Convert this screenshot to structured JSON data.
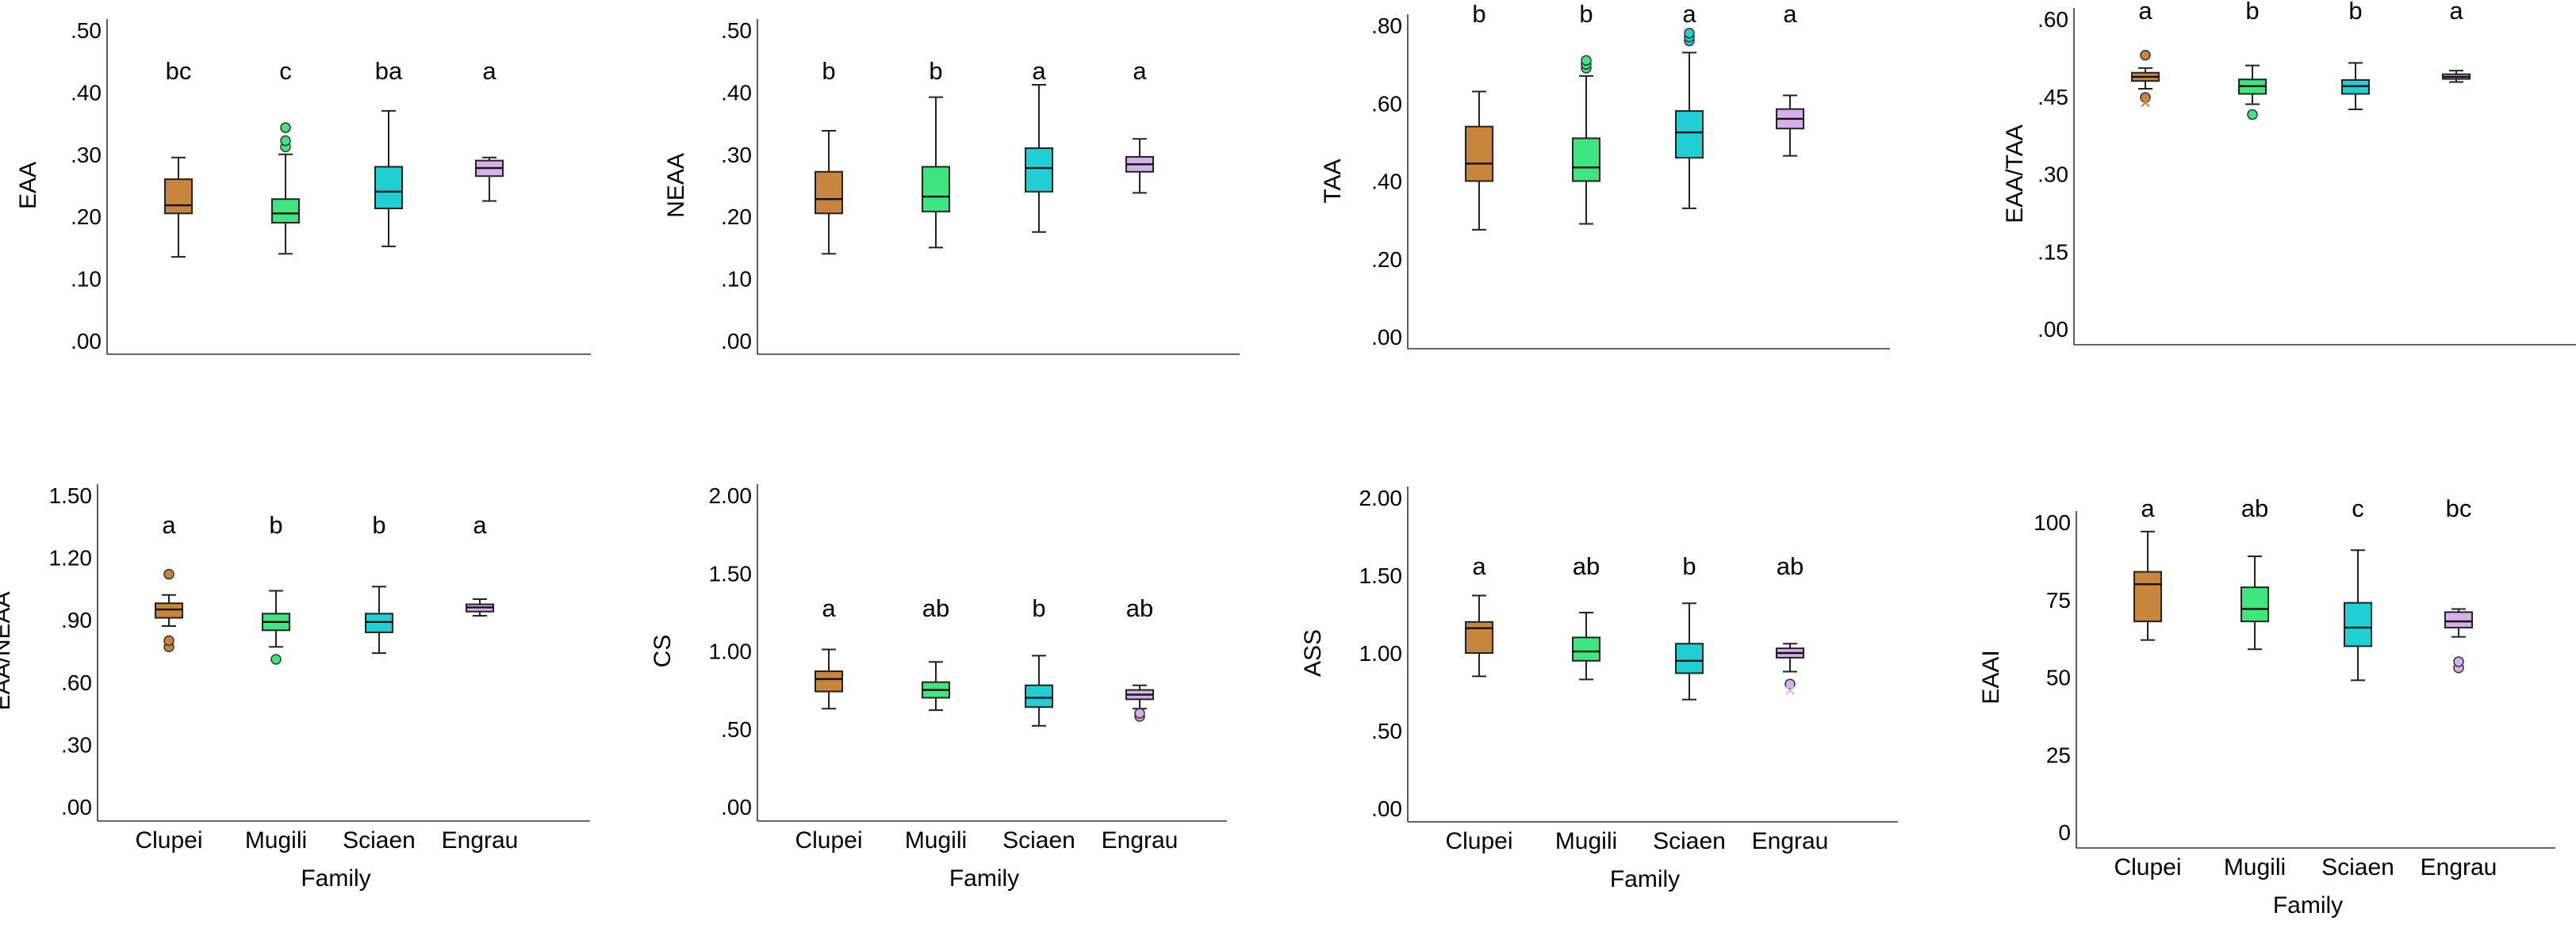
{
  "figure": {
    "categories": [
      "Clupei",
      "Mugili",
      "Sciaen",
      "Engrau"
    ],
    "xlabel": "Family",
    "colors": [
      "#c8853c",
      "#3fe67f",
      "#1fcfd3",
      "#d6b0ea"
    ]
  },
  "chart_data": [
    {
      "type": "boxplot",
      "ylabel": "EAA",
      "ylim": [
        0,
        0.5
      ],
      "ticks": [
        0,
        0.1,
        0.2,
        0.3,
        0.4,
        0.5
      ],
      "tick_labels": [
        ".00",
        ".10",
        ".20",
        ".30",
        ".40",
        ".50"
      ],
      "letters": [
        "bc",
        "c",
        "ba",
        "a"
      ],
      "boxes": [
        {
          "min": 0.135,
          "q1": 0.205,
          "median": 0.218,
          "q3": 0.26,
          "max": 0.295,
          "outliers": []
        },
        {
          "min": 0.14,
          "q1": 0.19,
          "median": 0.205,
          "q3": 0.228,
          "max": 0.3,
          "outliers": [
            0.312,
            0.322,
            0.343
          ]
        },
        {
          "min": 0.152,
          "q1": 0.213,
          "median": 0.24,
          "q3": 0.28,
          "max": 0.37,
          "outliers": []
        },
        {
          "min": 0.225,
          "q1": 0.265,
          "median": 0.278,
          "q3": 0.29,
          "max": 0.295,
          "outliers": []
        }
      ]
    },
    {
      "type": "boxplot",
      "ylabel": "NEAA",
      "ylim": [
        0,
        0.5
      ],
      "ticks": [
        0,
        0.1,
        0.2,
        0.3,
        0.4,
        0.5
      ],
      "tick_labels": [
        ".00",
        ".10",
        ".20",
        ".30",
        ".40",
        ".50"
      ],
      "letters": [
        "b",
        "b",
        "a",
        "a"
      ],
      "boxes": [
        {
          "min": 0.14,
          "q1": 0.205,
          "median": 0.228,
          "q3": 0.272,
          "max": 0.338,
          "outliers": []
        },
        {
          "min": 0.15,
          "q1": 0.208,
          "median": 0.232,
          "q3": 0.28,
          "max": 0.392,
          "outliers": []
        },
        {
          "min": 0.175,
          "q1": 0.24,
          "median": 0.278,
          "q3": 0.31,
          "max": 0.412,
          "outliers": []
        },
        {
          "min": 0.238,
          "q1": 0.272,
          "median": 0.284,
          "q3": 0.296,
          "max": 0.325,
          "outliers": []
        }
      ]
    },
    {
      "type": "boxplot",
      "ylabel": "TAA",
      "ylim": [
        0,
        0.8
      ],
      "ticks": [
        0,
        0.2,
        0.4,
        0.6,
        0.8
      ],
      "tick_labels": [
        ".00",
        ".20",
        ".40",
        ".60",
        ".80"
      ],
      "letters": [
        "b",
        "b",
        "a",
        "a"
      ],
      "boxes": [
        {
          "min": 0.275,
          "q1": 0.4,
          "median": 0.445,
          "q3": 0.54,
          "max": 0.63,
          "outliers": []
        },
        {
          "min": 0.29,
          "q1": 0.4,
          "median": 0.435,
          "q3": 0.51,
          "max": 0.67,
          "outliers": [
            0.69,
            0.7,
            0.71
          ]
        },
        {
          "min": 0.33,
          "q1": 0.46,
          "median": 0.525,
          "q3": 0.58,
          "max": 0.73,
          "outliers": [
            0.76,
            0.77,
            0.78
          ]
        },
        {
          "min": 0.465,
          "q1": 0.535,
          "median": 0.56,
          "q3": 0.585,
          "max": 0.62,
          "outliers": []
        }
      ]
    },
    {
      "type": "boxplot",
      "ylabel": "EAA/TAA",
      "ylim": [
        0,
        0.6
      ],
      "ticks": [
        0,
        0.15,
        0.3,
        0.45,
        0.6
      ],
      "tick_labels": [
        ".00",
        ".15",
        ".30",
        ".45",
        ".60"
      ],
      "letters": [
        "a",
        "b",
        "b",
        "a"
      ],
      "boxes": [
        {
          "min": 0.465,
          "q1": 0.48,
          "median": 0.488,
          "q3": 0.496,
          "max": 0.505,
          "outliers": [
            0.448,
            0.53
          ],
          "crosses": [
            0.438
          ]
        },
        {
          "min": 0.435,
          "q1": 0.455,
          "median": 0.47,
          "q3": 0.483,
          "max": 0.51,
          "outliers": [
            0.415
          ]
        },
        {
          "min": 0.425,
          "q1": 0.455,
          "median": 0.47,
          "q3": 0.482,
          "max": 0.515,
          "outliers": []
        },
        {
          "min": 0.478,
          "q1": 0.484,
          "median": 0.488,
          "q3": 0.493,
          "max": 0.5,
          "outliers": []
        }
      ]
    },
    {
      "type": "boxplot",
      "ylabel": "EAA/NEAA",
      "ylim": [
        0,
        1.5
      ],
      "ticks": [
        0,
        0.3,
        0.6,
        0.9,
        1.2,
        1.5
      ],
      "tick_labels": [
        ".00",
        ".30",
        ".60",
        ".90",
        "1.20",
        "1.50"
      ],
      "letters": [
        "a",
        "b",
        "b",
        "a"
      ],
      "boxes": [
        {
          "min": 0.87,
          "q1": 0.91,
          "median": 0.95,
          "q3": 0.98,
          "max": 1.02,
          "outliers": [
            0.77,
            0.8,
            1.12
          ]
        },
        {
          "min": 0.77,
          "q1": 0.85,
          "median": 0.89,
          "q3": 0.93,
          "max": 1.04,
          "outliers": [
            0.71
          ]
        },
        {
          "min": 0.74,
          "q1": 0.84,
          "median": 0.89,
          "q3": 0.93,
          "max": 1.06,
          "outliers": []
        },
        {
          "min": 0.92,
          "q1": 0.94,
          "median": 0.96,
          "q3": 0.975,
          "max": 1.0,
          "outliers": []
        }
      ]
    },
    {
      "type": "boxplot",
      "ylabel": "CS",
      "ylim": [
        0,
        2.0
      ],
      "ticks": [
        0,
        0.5,
        1.0,
        1.5,
        2.0
      ],
      "tick_labels": [
        ".00",
        ".50",
        "1.00",
        "1.50",
        "2.00"
      ],
      "letters": [
        "a",
        "ab",
        "b",
        "ab"
      ],
      "boxes": [
        {
          "min": 0.63,
          "q1": 0.74,
          "median": 0.82,
          "q3": 0.87,
          "max": 1.01,
          "outliers": []
        },
        {
          "min": 0.62,
          "q1": 0.7,
          "median": 0.75,
          "q3": 0.8,
          "max": 0.93,
          "outliers": []
        },
        {
          "min": 0.52,
          "q1": 0.64,
          "median": 0.7,
          "q3": 0.78,
          "max": 0.97,
          "outliers": []
        },
        {
          "min": 0.63,
          "q1": 0.69,
          "median": 0.72,
          "q3": 0.75,
          "max": 0.78,
          "outliers": [
            0.58,
            0.6
          ]
        }
      ]
    },
    {
      "type": "boxplot",
      "ylabel": "ASS",
      "ylim": [
        0,
        2.0
      ],
      "ticks": [
        0,
        0.5,
        1.0,
        1.5,
        2.0
      ],
      "tick_labels": [
        ".00",
        ".50",
        "1.00",
        "1.50",
        "2.00"
      ],
      "letters": [
        "a",
        "ab",
        "b",
        "ab"
      ],
      "boxes": [
        {
          "min": 0.85,
          "q1": 1.0,
          "median": 1.16,
          "q3": 1.2,
          "max": 1.37,
          "outliers": []
        },
        {
          "min": 0.83,
          "q1": 0.95,
          "median": 1.01,
          "q3": 1.1,
          "max": 1.26,
          "outliers": []
        },
        {
          "min": 0.7,
          "q1": 0.87,
          "median": 0.95,
          "q3": 1.06,
          "max": 1.32,
          "outliers": []
        },
        {
          "min": 0.88,
          "q1": 0.97,
          "median": 1.0,
          "q3": 1.03,
          "max": 1.06,
          "outliers": [
            0.8
          ],
          "crosses": [
            0.76
          ]
        }
      ]
    },
    {
      "type": "boxplot",
      "ylabel": "EAAI",
      "ylim": [
        0,
        100
      ],
      "ticks": [
        0,
        25,
        50,
        75,
        100
      ],
      "tick_labels": [
        "0",
        "25",
        "50",
        "75",
        "100"
      ],
      "letters": [
        "a",
        "ab",
        "c",
        "bc"
      ],
      "boxes": [
        {
          "min": 62,
          "q1": 68,
          "median": 80,
          "q3": 84,
          "max": 97,
          "outliers": []
        },
        {
          "min": 59,
          "q1": 68,
          "median": 72,
          "q3": 79,
          "max": 89,
          "outliers": []
        },
        {
          "min": 49,
          "q1": 60,
          "median": 66,
          "q3": 74,
          "max": 91,
          "outliers": []
        },
        {
          "min": 63,
          "q1": 66,
          "median": 68,
          "q3": 71,
          "max": 72,
          "outliers": [
            53,
            55
          ]
        }
      ]
    }
  ]
}
